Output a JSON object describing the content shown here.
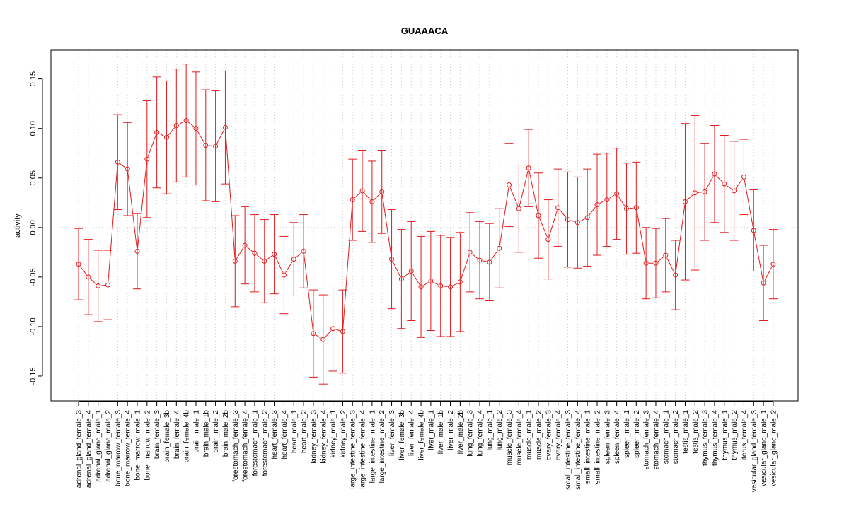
{
  "chart_data": {
    "type": "line",
    "title": "GUAAACA",
    "xlabel": "",
    "ylabel": "activity",
    "ylim": [
      -0.175,
      0.179
    ],
    "yticks": [
      -0.15,
      -0.1,
      -0.05,
      0.0,
      0.05,
      0.1,
      0.15
    ],
    "ytick_labels": [
      "-0.15",
      "-0.10",
      "-0.05",
      "0.00",
      "0.05",
      "0.10",
      "0.15"
    ],
    "grid": true,
    "series_color": "#E41A1C",
    "categories": [
      "adrenal_gland_female_3",
      "adrenal_gland_female_4",
      "adrenal_gland_male_1",
      "adrenal_gland_male_2",
      "bone_marrow_female_3",
      "bone_marrow_female_4",
      "bone_marrow_male_1",
      "bone_marrow_male_2",
      "brain_female_3",
      "brain_female_3b",
      "brain_female_4",
      "brain_female_4b",
      "brain_male_1",
      "brain_male_1b",
      "brain_male_2",
      "brain_male_2b",
      "forestomach_female_3",
      "forestomach_female_4",
      "forestomach_male_1",
      "forestomach_male_2",
      "heart_female_3",
      "heart_female_4",
      "heart_male_1",
      "heart_male_2",
      "kidney_female_3",
      "kidney_female_4",
      "kidney_male_1",
      "kidney_male_2",
      "large_intestine_female_3",
      "large_intestine_female_4",
      "large_intestine_male_1",
      "large_intestine_male_2",
      "liver_female_3",
      "liver_female_3b",
      "liver_female_4",
      "liver_female_4b",
      "liver_male_1",
      "liver_male_1b",
      "liver_male_2",
      "liver_male_2b",
      "lung_female_3",
      "lung_female_4",
      "lung_male_1",
      "lung_male_2",
      "muscle_female_3",
      "muscle_female_4",
      "muscle_male_1",
      "muscle_male_2",
      "ovary_female_3",
      "ovary_female_4",
      "small_intestine_female_3",
      "small_intestine_female_4",
      "small_intestine_male_1",
      "small_intestine_male_2",
      "spleen_female_3",
      "spleen_female_4",
      "spleen_male_1",
      "spleen_male_2",
      "stomach_female_3",
      "stomach_female_4",
      "stomach_male_1",
      "stomach_male_2",
      "testis_male_1",
      "testis_male_2",
      "thymus_female_3",
      "thymus_female_4",
      "thymus_male_1",
      "thymus_male_2",
      "uterus_female_4",
      "vesicular_gland_female_3",
      "vesicular_gland_male_1",
      "vesicular_gland_male_2"
    ],
    "values": [
      -0.037,
      -0.05,
      -0.059,
      -0.058,
      0.066,
      0.059,
      -0.024,
      0.069,
      0.096,
      0.091,
      0.103,
      0.108,
      0.1,
      0.083,
      0.082,
      0.101,
      -0.034,
      -0.018,
      -0.026,
      -0.034,
      -0.027,
      -0.048,
      -0.032,
      -0.024,
      -0.107,
      -0.113,
      -0.102,
      -0.105,
      0.028,
      0.037,
      0.026,
      0.036,
      -0.032,
      -0.052,
      -0.044,
      -0.06,
      -0.054,
      -0.059,
      -0.06,
      -0.055,
      -0.025,
      -0.033,
      -0.035,
      -0.021,
      0.043,
      0.019,
      0.06,
      0.012,
      -0.012,
      0.02,
      0.008,
      0.005,
      0.01,
      0.023,
      0.028,
      0.034,
      0.019,
      0.02,
      -0.036,
      -0.036,
      -0.028,
      -0.048,
      0.026,
      0.035,
      0.036,
      0.054,
      0.044,
      0.037,
      0.051,
      -0.003,
      -0.056,
      -0.037
    ],
    "errors": [
      0.036,
      0.038,
      0.036,
      0.035,
      0.048,
      0.047,
      0.038,
      0.059,
      0.056,
      0.057,
      0.057,
      0.057,
      0.057,
      0.056,
      0.056,
      0.057,
      0.046,
      0.039,
      0.039,
      0.042,
      0.04,
      0.039,
      0.037,
      0.037,
      0.044,
      0.045,
      0.043,
      0.042,
      0.041,
      0.041,
      0.041,
      0.042,
      0.05,
      0.05,
      0.05,
      0.051,
      0.05,
      0.051,
      0.05,
      0.05,
      0.04,
      0.039,
      0.039,
      0.04,
      0.042,
      0.044,
      0.039,
      0.043,
      0.04,
      0.039,
      0.048,
      0.046,
      0.049,
      0.051,
      0.047,
      0.046,
      0.046,
      0.046,
      0.036,
      0.035,
      0.037,
      0.035,
      0.079,
      0.078,
      0.049,
      0.049,
      0.049,
      0.05,
      0.038,
      0.041,
      0.038,
      0.035
    ]
  }
}
